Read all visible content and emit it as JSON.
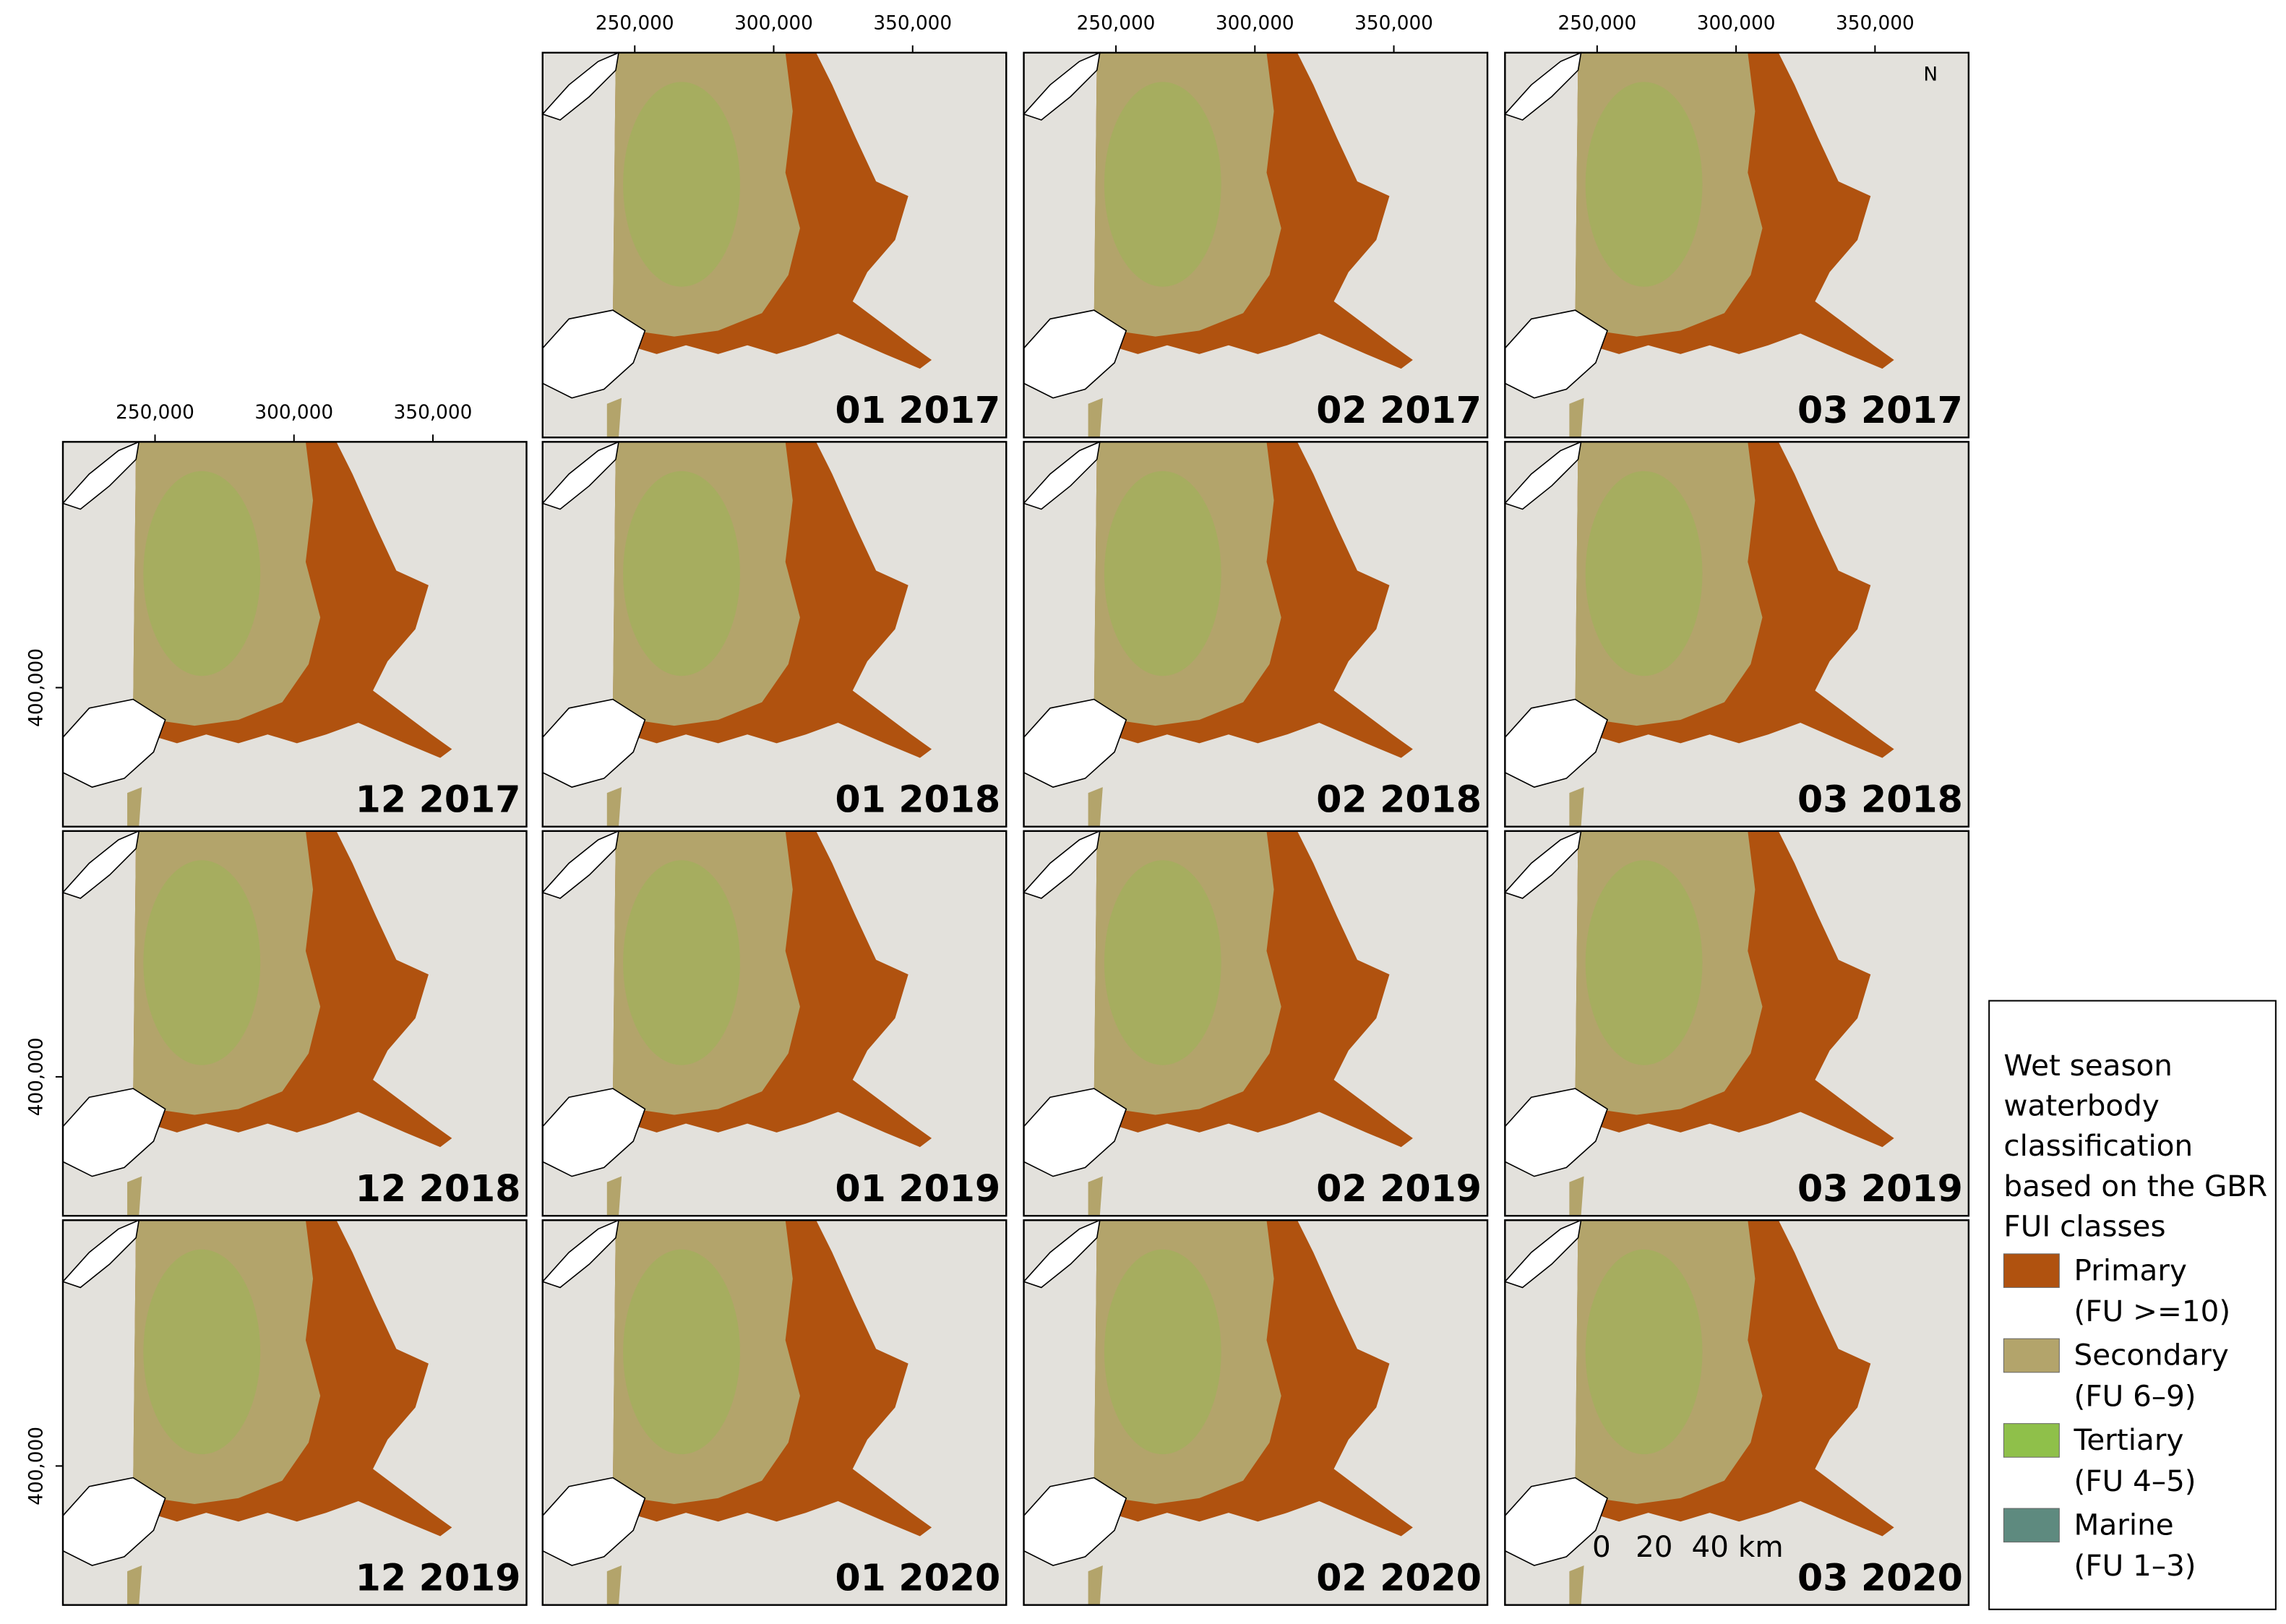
{
  "panels": [
    {
      "label": "01 2017"
    },
    {
      "label": "02 2017"
    },
    {
      "label": "03 2017"
    },
    {
      "label": "12 2017"
    },
    {
      "label": "01 2018"
    },
    {
      "label": "02 2018"
    },
    {
      "label": "03 2018"
    },
    {
      "label": "12 2018"
    },
    {
      "label": "01 2019"
    },
    {
      "label": "02 2019"
    },
    {
      "label": "03 2019"
    },
    {
      "label": "12 2019"
    },
    {
      "label": "01 2020"
    },
    {
      "label": "02 2020"
    },
    {
      "label": "03 2020"
    }
  ],
  "x_axis_labels": [
    "250,000",
    "300,000",
    "350,000"
  ],
  "y_axis_label": "400,000",
  "north": "N",
  "scale_bar": [
    "0",
    "20",
    "40 km"
  ],
  "legend": {
    "title_lines": [
      "Wet season",
      "waterbody",
      "classification",
      "based on the GBR",
      "FUI classes"
    ],
    "items": [
      {
        "name": "Primary",
        "range": "(FU >=10)",
        "color": "#b0520f"
      },
      {
        "name": "Secondary",
        "range": "(FU 6–9)",
        "color": "#b3a46b"
      },
      {
        "name": "Tertiary",
        "range": "(FU 4–5)",
        "color": "#8fc04a"
      },
      {
        "name": "Marine",
        "range": "(FU 1–3)",
        "color": "#5e8a7f"
      }
    ]
  }
}
